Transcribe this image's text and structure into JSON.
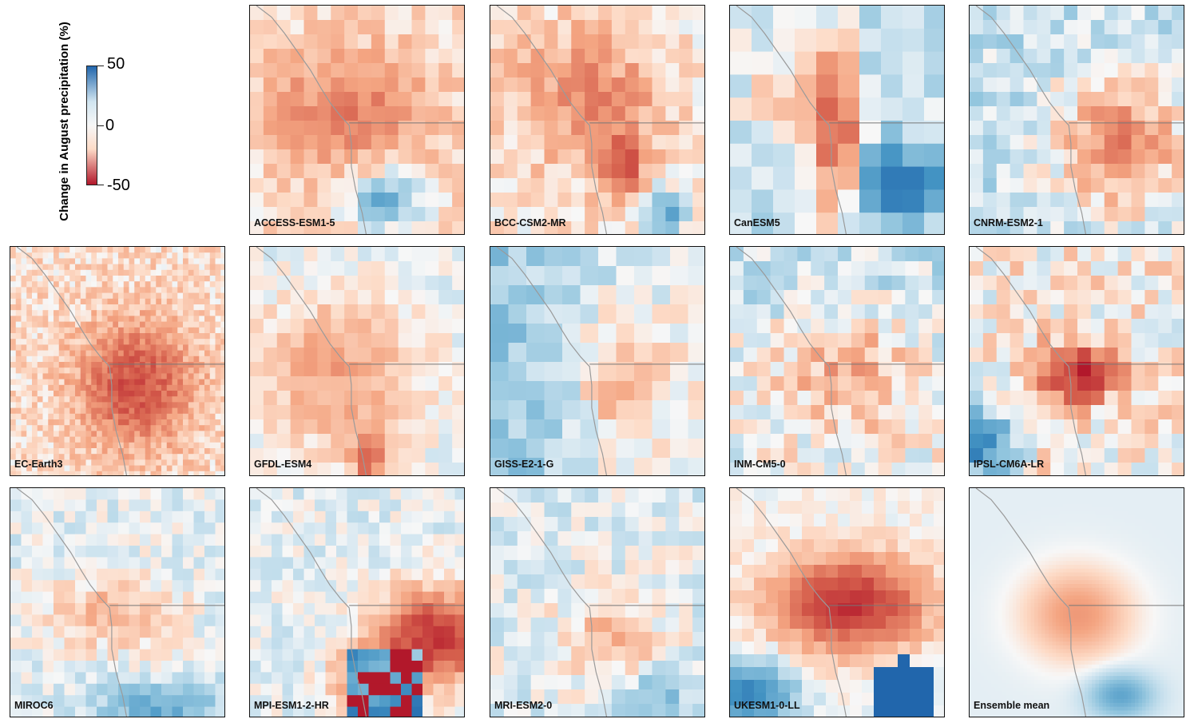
{
  "chart_data": {
    "type": "heatmap",
    "colorbar": {
      "title": "Change in August precipitation (%)",
      "ticks": [
        50,
        0,
        -50
      ],
      "range": [
        -50,
        50
      ],
      "colors": {
        "high": "#2166ac",
        "mid": "#f7f7f7",
        "low": "#b2182b"
      }
    },
    "panels": [
      {
        "name": "ACCESS-ESM1-5"
      },
      {
        "name": "BCC-CSM2-MR"
      },
      {
        "name": "CanESM5"
      },
      {
        "name": "CNRM-ESM2-1"
      },
      {
        "name": "EC-Earth3"
      },
      {
        "name": "GFDL-ESM4"
      },
      {
        "name": "GISS-E2-1-G"
      },
      {
        "name": "INM-CM5-0"
      },
      {
        "name": "IPSL-CM6A-LR"
      },
      {
        "name": "MIROC6"
      },
      {
        "name": "MPI-ESM1-2-HR"
      },
      {
        "name": "MRI-ESM2-0"
      },
      {
        "name": "UKESM1-0-LL"
      },
      {
        "name": "Ensemble mean"
      }
    ]
  }
}
